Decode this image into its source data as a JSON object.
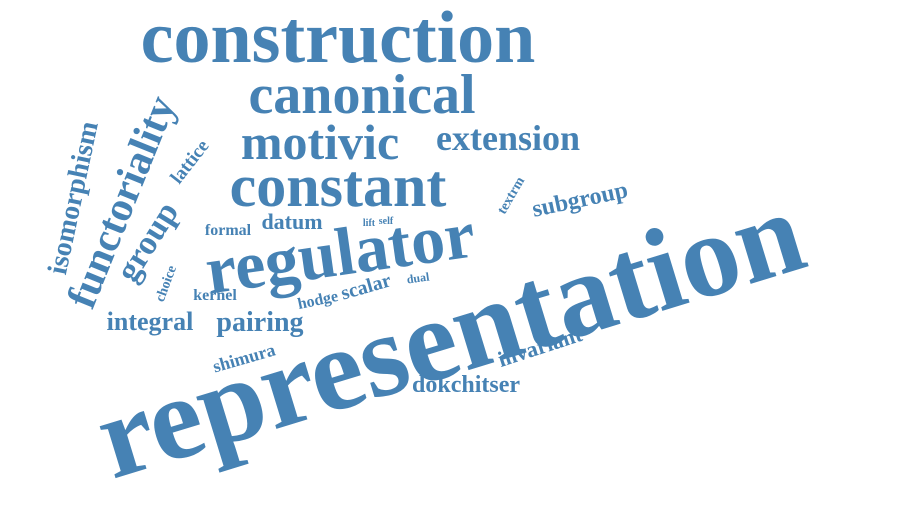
{
  "accent_color": "#4682b4",
  "background_color": "#ffffff",
  "words": {
    "representation": "representation",
    "construction": "construction",
    "canonical": "canonical",
    "motivic": "motivic",
    "extension": "extension",
    "constant": "constant",
    "regulator": "regulator",
    "functoriality": "functoriality",
    "isomorphism": "isomorphism",
    "group": "group",
    "lattice": "lattice",
    "subgroup": "subgroup",
    "textrm": "textrm",
    "datum": "datum",
    "formal": "formal",
    "lift": "lift",
    "self": "self",
    "choice": "choice",
    "kernel": "kernel",
    "hodge": "hodge",
    "scalar": "scalar",
    "dual": "dual",
    "integral": "integral",
    "pairing": "pairing",
    "shimura": "shimura",
    "invariant": "invariant",
    "dokchitser": "dokchitser"
  }
}
